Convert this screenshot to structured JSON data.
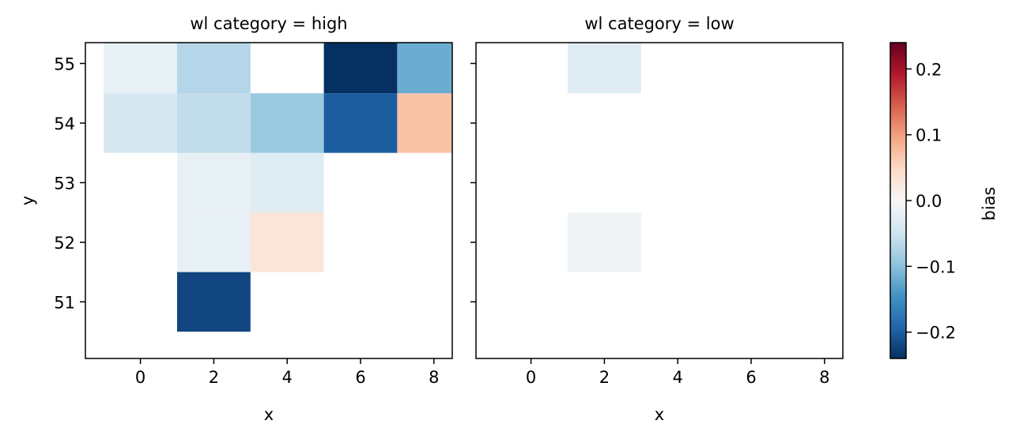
{
  "chart_data": {
    "type": "heatmap",
    "colormap": "RdBu_r",
    "colorbar": {
      "label": "bias",
      "vmin": -0.24,
      "vmax": 0.24,
      "ticks": [
        -0.2,
        -0.1,
        0.0,
        0.1,
        0.2
      ],
      "tick_labels": [
        "−0.2",
        "−0.1",
        "0.0",
        "0.1",
        "0.2"
      ]
    },
    "x_centers": [
      0,
      2,
      4,
      6,
      8
    ],
    "y_centers": [
      51,
      52,
      53,
      54,
      55
    ],
    "xlim": [
      -1.5,
      8.5
    ],
    "ylim": [
      50.05,
      55.35
    ],
    "x_ticks": [
      0,
      2,
      4,
      6,
      8
    ],
    "y_ticks": [
      51,
      52,
      53,
      54,
      55
    ],
    "xlabel": "x",
    "ylabel": "y",
    "panels": [
      {
        "title": "wl category = high",
        "values": [
          [
            null,
            -0.22,
            null,
            null,
            null
          ],
          [
            null,
            -0.02,
            0.03,
            null,
            null
          ],
          [
            null,
            -0.02,
            -0.03,
            null,
            null
          ],
          [
            -0.04,
            -0.06,
            -0.09,
            -0.2,
            0.07
          ],
          [
            -0.02,
            -0.07,
            null,
            -0.24,
            -0.12
          ]
        ]
      },
      {
        "title": "wl category = low",
        "values": [
          [
            null,
            null,
            null,
            null,
            null
          ],
          [
            null,
            -0.01,
            null,
            null,
            null
          ],
          [
            null,
            null,
            null,
            null,
            null
          ],
          [
            null,
            null,
            null,
            null,
            null
          ],
          [
            null,
            -0.03,
            null,
            null,
            null
          ]
        ]
      }
    ]
  }
}
